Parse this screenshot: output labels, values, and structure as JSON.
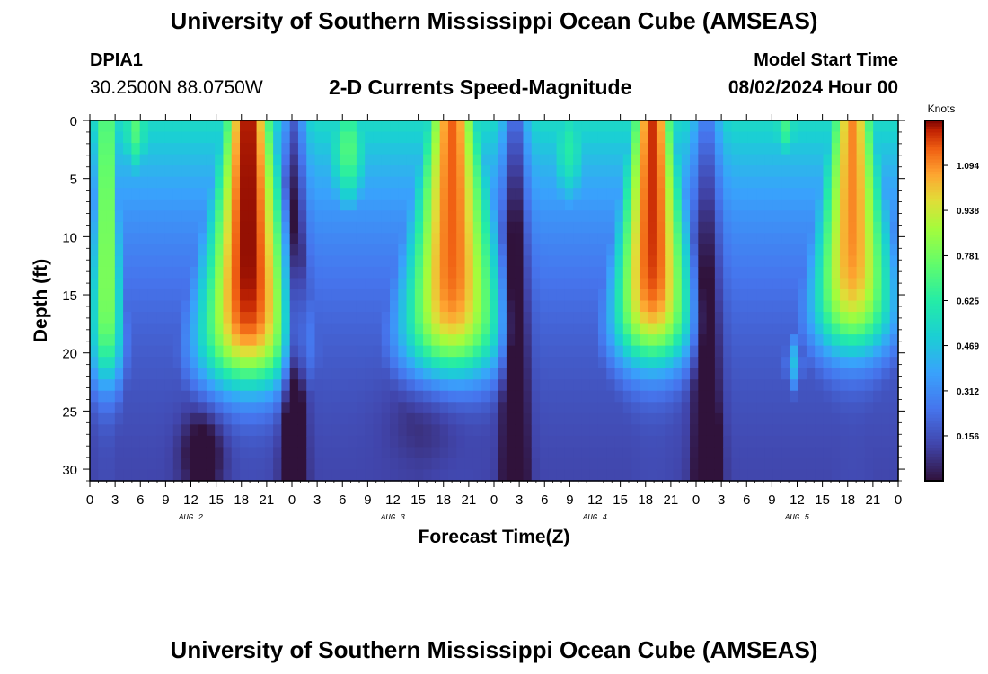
{
  "header": {
    "title": "University of Southern Mississippi Ocean Cube (AMSEAS)",
    "station": "DPIA1",
    "coords": "30.2500N  88.0750W",
    "plot_title": "2-D Currents Speed-Magnitude",
    "model_start_label": "Model Start Time",
    "model_start_value": "08/02/2024 Hour 00"
  },
  "footer": {
    "title": "University of Southern Mississippi Ocean Cube (AMSEAS)"
  },
  "chart_data": {
    "type": "heatmap",
    "title": "2-D Currents Speed-Magnitude",
    "xlabel": "Forecast Time(Z)",
    "ylabel": "Depth (ft)",
    "xlim": [
      0,
      96
    ],
    "ylim": [
      0,
      31
    ],
    "x_ticks": [
      0,
      3,
      6,
      9,
      12,
      15,
      18,
      21,
      24,
      27,
      30,
      33,
      36,
      39,
      42,
      45,
      48,
      51,
      54,
      57,
      60,
      63,
      66,
      69,
      72,
      75,
      78,
      81,
      84,
      87,
      90,
      93,
      96
    ],
    "x_tick_labels": [
      "0",
      "3",
      "6",
      "9",
      "12",
      "15",
      "18",
      "21",
      "0",
      "3",
      "6",
      "9",
      "12",
      "15",
      "18",
      "21",
      "0",
      "3",
      "6",
      "9",
      "12",
      "15",
      "18",
      "21",
      "0",
      "3",
      "6",
      "9",
      "12",
      "15",
      "18",
      "21",
      "0"
    ],
    "y_ticks": [
      0,
      5,
      10,
      15,
      20,
      25,
      30
    ],
    "y_tick_labels": [
      "0",
      "5",
      "10",
      "15",
      "20",
      "25",
      "30"
    ],
    "day_labels": [
      {
        "text": "AUG 2",
        "at": 12
      },
      {
        "text": "AUG 3",
        "at": 36
      },
      {
        "text": "AUG 4",
        "at": 60
      },
      {
        "text": "AUG 5",
        "at": 84
      }
    ],
    "colorbar": {
      "unit": "Knots",
      "vmin": 0.0,
      "vmax": 1.25,
      "ticks": [
        0.156,
        0.312,
        0.469,
        0.625,
        0.781,
        0.938,
        1.094
      ],
      "tick_labels": [
        "0.156",
        "0.312",
        "0.469",
        "0.625",
        "0.781",
        "0.938",
        "1.094"
      ]
    },
    "maxima": [
      {
        "center": 1.5,
        "width": 1.2,
        "peak": 0.85,
        "depth": 22
      },
      {
        "center": 18.5,
        "width": 3.3,
        "peak": 1.25,
        "depth": 22
      },
      {
        "center": 43.0,
        "width": 3.5,
        "peak": 1.15,
        "depth": 21
      },
      {
        "center": 67.0,
        "width": 2.8,
        "peak": 1.2,
        "depth": 20
      },
      {
        "center": 91.0,
        "width": 3.0,
        "peak": 1.1,
        "depth": 19
      }
    ],
    "pattern_notes": [
      {
        "t": 5,
        "surface_speed": 0.75
      },
      {
        "t": 12.5,
        "deep_speed": 0.02
      },
      {
        "t": 24,
        "min_speed": 0.1
      },
      {
        "t": 50.5,
        "min_speed": 0.1
      },
      {
        "t": 74,
        "deep_speed": 0.04
      },
      {
        "t": 84,
        "mid_speed": 0.45
      }
    ]
  }
}
